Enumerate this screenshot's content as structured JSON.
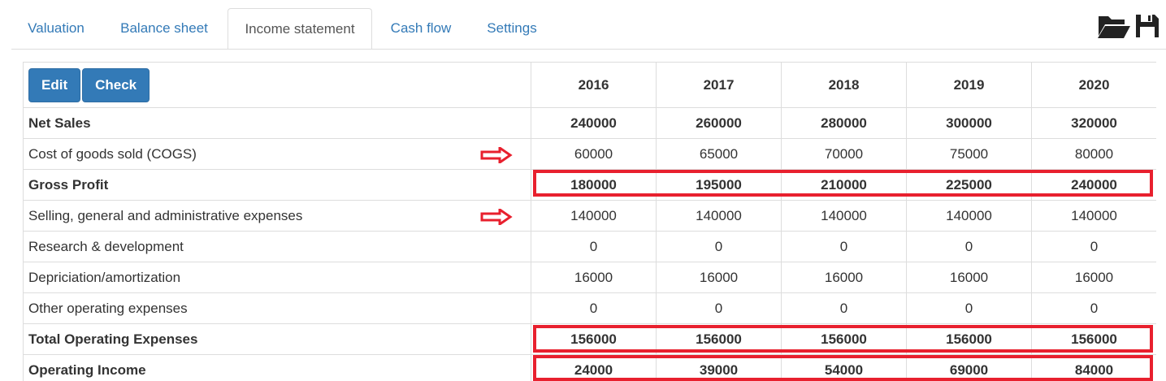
{
  "tabs": [
    {
      "label": "Valuation"
    },
    {
      "label": "Balance sheet"
    },
    {
      "label": "Income statement"
    },
    {
      "label": "Cash flow"
    },
    {
      "label": "Settings"
    }
  ],
  "toolbar": {
    "open_icon": "folder-open-icon",
    "save_icon": "floppy-save-icon"
  },
  "buttons": {
    "edit": "Edit",
    "check": "Check"
  },
  "years": [
    "2016",
    "2017",
    "2018",
    "2019",
    "2020"
  ],
  "rows": [
    {
      "label": "Net Sales",
      "values": [
        "240000",
        "260000",
        "280000",
        "300000",
        "320000"
      ]
    },
    {
      "label": "Cost of goods sold (COGS)",
      "values": [
        "60000",
        "65000",
        "70000",
        "75000",
        "80000"
      ]
    },
    {
      "label": "Gross Profit",
      "values": [
        "180000",
        "195000",
        "210000",
        "225000",
        "240000"
      ]
    },
    {
      "label": "Selling, general and administrative expenses",
      "values": [
        "140000",
        "140000",
        "140000",
        "140000",
        "140000"
      ]
    },
    {
      "label": "Research & development",
      "values": [
        "0",
        "0",
        "0",
        "0",
        "0"
      ]
    },
    {
      "label": "Depriciation/amortization",
      "values": [
        "16000",
        "16000",
        "16000",
        "16000",
        "16000"
      ]
    },
    {
      "label": "Other operating expenses",
      "values": [
        "0",
        "0",
        "0",
        "0",
        "0"
      ]
    },
    {
      "label": "Total Operating Expenses",
      "values": [
        "156000",
        "156000",
        "156000",
        "156000",
        "156000"
      ]
    },
    {
      "label": "Operating Income",
      "values": [
        "24000",
        "39000",
        "54000",
        "69000",
        "84000"
      ]
    }
  ],
  "colors": {
    "accent": "#337ab7",
    "highlight": "#e8202e"
  }
}
